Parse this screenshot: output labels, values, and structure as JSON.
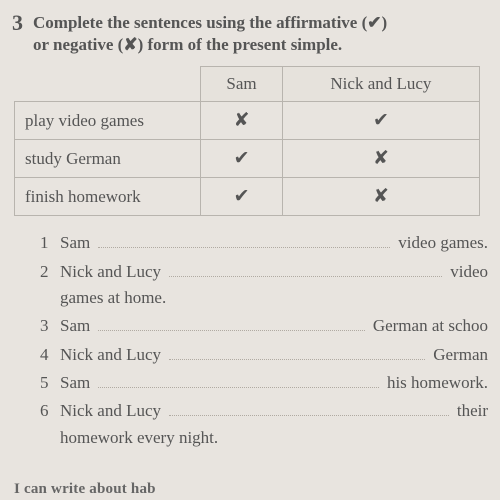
{
  "exercise": {
    "number": "3",
    "instruction_line1": "Complete the sentences using the affirmative (✔)",
    "instruction_line2": "or negative (✘) form of the present simple."
  },
  "table": {
    "col1": "Sam",
    "col2": "Nick and Lucy",
    "rows": [
      {
        "label": "play video games",
        "c1": "✘",
        "c2": "✔"
      },
      {
        "label": "study German",
        "c1": "✔",
        "c2": "✘"
      },
      {
        "label": "finish homework",
        "c1": "✔",
        "c2": "✘"
      }
    ]
  },
  "sentences": {
    "s1": {
      "n": "1",
      "a": "Sam ",
      "b": " video games."
    },
    "s2": {
      "n": "2",
      "a": "Nick and Lucy ",
      "b": " video",
      "c": "games at home."
    },
    "s3": {
      "n": "3",
      "a": "Sam ",
      "b": " German at schoo"
    },
    "s4": {
      "n": "4",
      "a": "Nick and Lucy ",
      "b": " German"
    },
    "s5": {
      "n": "5",
      "a": "Sam ",
      "b": " his homework."
    },
    "s6": {
      "n": "6",
      "a": "Nick and Lucy ",
      "b": " their",
      "c": "homework every night."
    }
  },
  "bottom_cut": "I can write about hab",
  "colors": {
    "page_bg": "#e8e4df",
    "text": "#555555",
    "border": "#b8b4ae",
    "dotted": "#b0aaa2"
  }
}
